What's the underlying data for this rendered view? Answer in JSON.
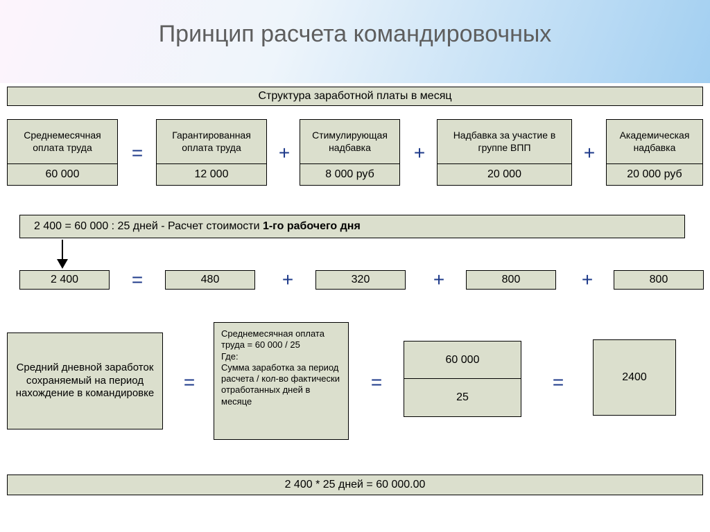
{
  "colors": {
    "box_fill": "#dbdfcd",
    "box_border": "#000000",
    "operator": "#1e3a8a",
    "title": "#5e5e5e",
    "header_grad_start": "#fdf4fc",
    "header_grad_mid": "#eef5fb",
    "header_grad_end": "#a2cff1"
  },
  "title": "Принцип расчета командировочных",
  "struct_header": "Структура заработной платы в месяц",
  "row1": {
    "b1": {
      "label": "Среднемесячная оплата труда",
      "value": "60 000"
    },
    "b2": {
      "label": "Гарантированная оплата труда",
      "value": "12 000"
    },
    "b3": {
      "label": "Стимулирующая надбавка",
      "value": "8 000 руб"
    },
    "b4": {
      "label": "Надбавка за участие в группе ВПП",
      "value": "20 000"
    },
    "b5": {
      "label": "Академическая надбавка",
      "value": "20 000 руб"
    }
  },
  "calc_bar": "2 400 = 60 000 : 25 дней  - Расчет стоимости 1-го рабочего дня",
  "row2": {
    "v1": "2 400",
    "v2": "480",
    "v3": "320",
    "v4": "800",
    "v5": "800"
  },
  "row3": {
    "left_label": "Средний дневной заработок сохраняемый на период нахождение в командировке",
    "mid_text": "Среднемесячная оплата труда = 60 000 / 25\nГде:\nСумма заработка за период расчета / кол-во фактически отработанных дней в месяце",
    "frac_num": "60 000",
    "frac_den": "25",
    "result": "2400"
  },
  "bottom_bar": "2 400 * 25 дней = 60 000.00",
  "ops": {
    "eq": "=",
    "plus": "+"
  }
}
